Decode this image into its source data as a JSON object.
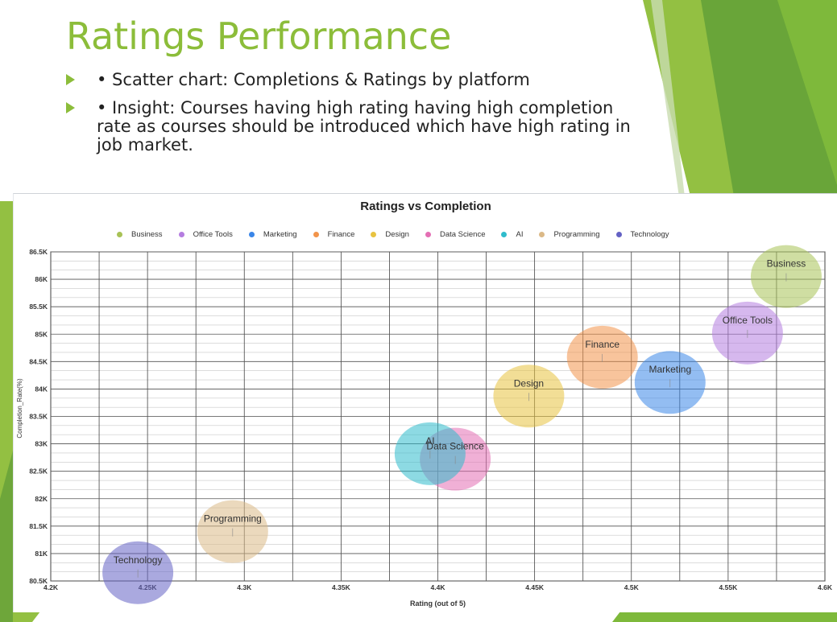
{
  "slide": {
    "title": "Ratings Performance",
    "bullets": [
      "• Scatter chart: Completions & Ratings by platform",
      "• Insight: Courses having high rating having high completion rate as courses should be introduced which have high rating in job market."
    ]
  },
  "theme": {
    "accent": "#8cbd3a",
    "accent_dark": "#5e9a2e"
  },
  "chart_data": {
    "type": "scatter",
    "title": "Ratings vs Completion",
    "xlabel": "Rating (out of 5)",
    "ylabel": "Completion_Rate(%)",
    "xlim": [
      4.2,
      4.6
    ],
    "ylim": [
      80.5,
      86.5
    ],
    "x_ticks": [
      "4.2K",
      "4.25K",
      "4.3K",
      "4.35K",
      "4.4K",
      "4.45K",
      "4.5K",
      "4.55K",
      "4.6K"
    ],
    "y_ticks": [
      "80.5K",
      "81K",
      "81.5K",
      "82K",
      "82.5K",
      "83K",
      "83.5K",
      "84K",
      "84.5K",
      "85K",
      "85.5K",
      "86K",
      "86.5K"
    ],
    "grid": true,
    "legend_position": "top",
    "series": [
      {
        "name": "Business",
        "color": "#a8c256",
        "x": 4.58,
        "y": 86.05
      },
      {
        "name": "Office Tools",
        "color": "#b57de0",
        "x": 4.56,
        "y": 85.02
      },
      {
        "name": "Marketing",
        "color": "#3a86e8",
        "x": 4.52,
        "y": 84.12
      },
      {
        "name": "Finance",
        "color": "#f2944a",
        "x": 4.485,
        "y": 84.58
      },
      {
        "name": "Design",
        "color": "#e8c340",
        "x": 4.447,
        "y": 83.87
      },
      {
        "name": "Data Science",
        "color": "#e46fb4",
        "x": 4.409,
        "y": 82.72
      },
      {
        "name": "AI",
        "color": "#2fbccc",
        "x": 4.396,
        "y": 82.82
      },
      {
        "name": "Programming",
        "color": "#dbb987",
        "x": 4.294,
        "y": 81.4
      },
      {
        "name": "Technology",
        "color": "#6462c4",
        "x": 4.245,
        "y": 80.65
      }
    ]
  }
}
